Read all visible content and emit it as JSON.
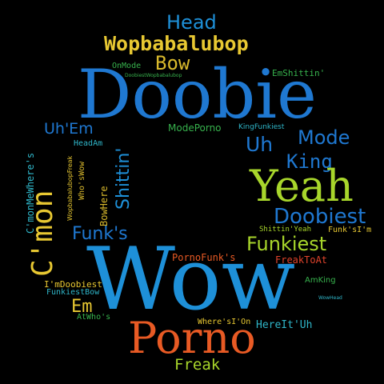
{
  "canvas": {
    "background": "#000000"
  },
  "palette": {
    "blue": "#1f78d1",
    "lightblue": "#1e90d8",
    "cyan": "#2fb6c9",
    "yellow": "#e8c832",
    "lime": "#a8d62b",
    "green": "#37b24d",
    "orange": "#e85a24",
    "red": "#e0432b",
    "gold": "#d9b92c",
    "white": "#f0f0f0"
  },
  "words": [
    "Head",
    "Wopbabalubop",
    "Bow",
    "OnMode",
    "DoobiestWopbabalubop",
    "EmShittin'",
    "Doobie",
    "ModePorno",
    "KingFunkiest",
    "Uh'Em",
    "HeadAm",
    "Shittin'",
    "Uh",
    "Mode",
    "C'monMeWhere's",
    "WopbabalubopFreak",
    "Who'sWow",
    "BowHere",
    "King",
    "C'mon",
    "Yeah",
    "Doobiest",
    "Shittin'Yeah",
    "Funk's",
    "Funkiest",
    "Funk'sI'm",
    "PornoFunk's",
    "FreakToAt",
    "Wow",
    "I'mDoobiest",
    "FunkiestBow",
    "AmKing",
    "Em",
    "WowHead",
    "AtWho's",
    "Where'sI'On",
    "HereIt'Uh",
    "Porno",
    "Freak"
  ]
}
